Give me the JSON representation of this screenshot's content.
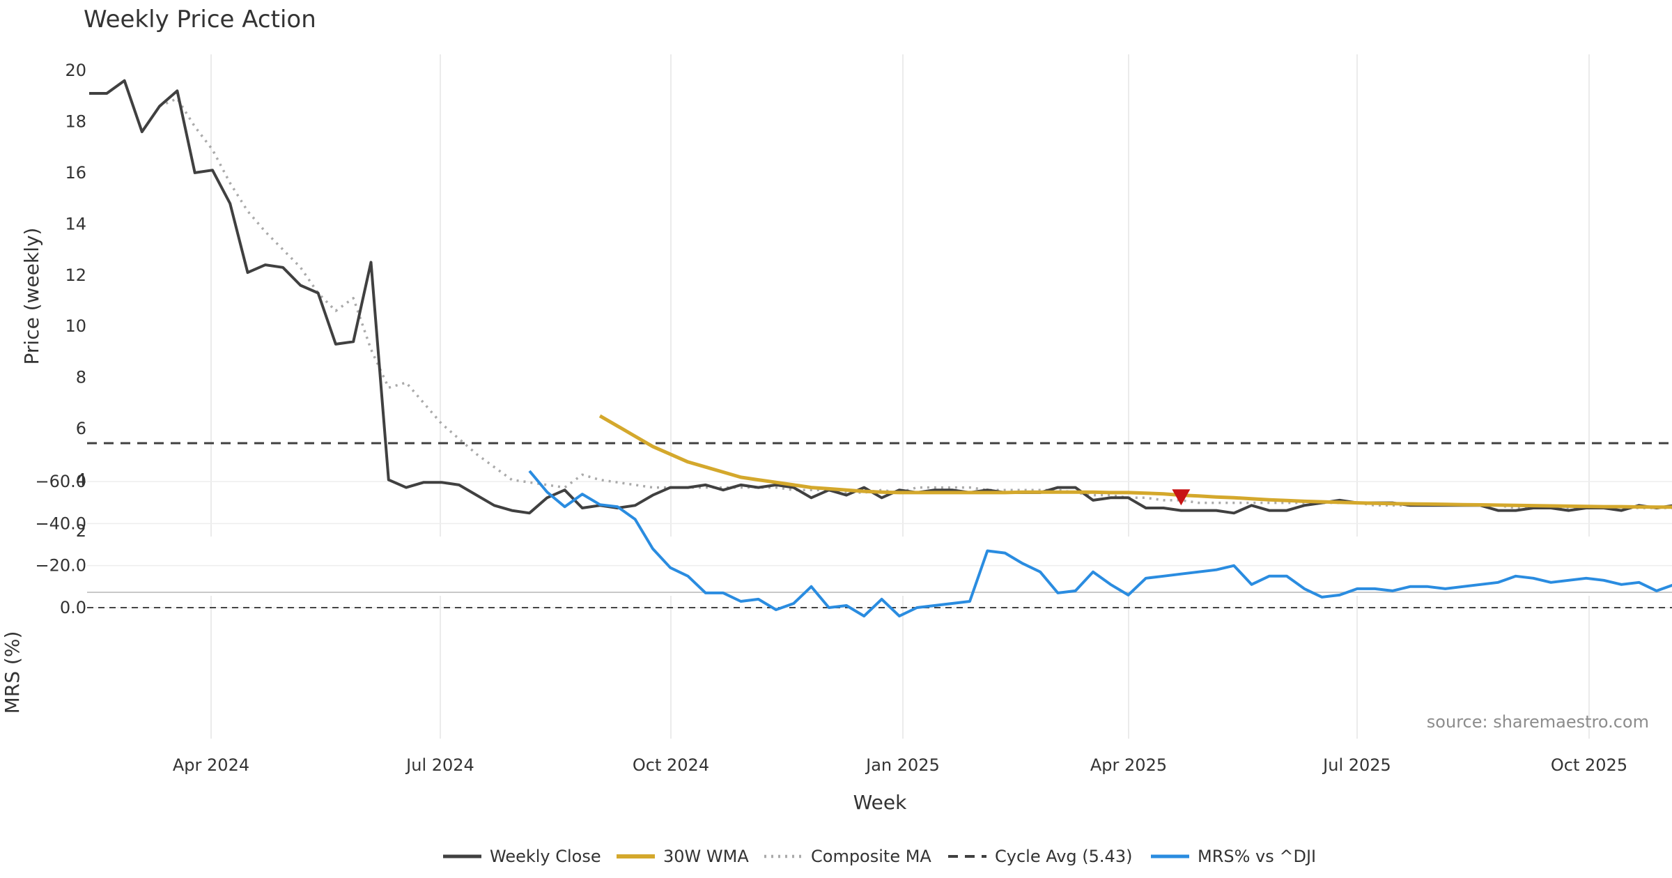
{
  "chart_data": {
    "type": "line",
    "title": "Weekly Price Action",
    "xlabel": "Week",
    "x_tick_labels": [
      "Apr 2024",
      "Jul 2024",
      "Oct 2024",
      "Jan 2025",
      "Apr 2025",
      "Jul 2025",
      "Oct 2025"
    ],
    "source_note": "source: sharemaestro.com",
    "price_panel": {
      "ylabel": "Price (weekly)",
      "ylim": [
        2,
        20
      ],
      "y_ticks": [
        "2",
        "4",
        "6",
        "8",
        "10",
        "12",
        "14",
        "16",
        "18",
        "20"
      ],
      "cycle_avg": 5.43,
      "sell_signal": {
        "week_index": 62,
        "price": 3.3
      },
      "series": [
        {
          "name": "Weekly Close",
          "color": "#404040",
          "start_index": 0,
          "values": [
            19.1,
            19.1,
            19.6,
            17.6,
            18.6,
            19.2,
            16.0,
            16.1,
            14.8,
            12.1,
            12.4,
            12.3,
            11.6,
            11.3,
            9.3,
            9.4,
            12.5,
            4.0,
            3.7,
            3.9,
            3.9,
            3.8,
            3.4,
            3.0,
            2.8,
            2.7,
            3.3,
            3.6,
            2.9,
            3.0,
            2.9,
            3.0,
            3.4,
            3.7,
            3.7,
            3.8,
            3.6,
            3.8,
            3.7,
            3.8,
            3.7,
            3.3,
            3.6,
            3.4,
            3.7,
            3.3,
            3.6,
            3.5,
            3.6,
            3.6,
            3.5,
            3.6,
            3.5,
            3.5,
            3.5,
            3.7,
            3.7,
            3.2,
            3.3,
            3.3,
            2.9,
            2.9,
            2.8,
            2.8,
            2.8,
            2.7,
            3.0,
            2.8,
            2.8,
            3.0,
            3.1,
            3.2,
            3.1,
            3.1,
            3.1,
            3.0,
            3.0,
            3.0,
            3.0,
            3.0,
            2.8,
            2.8,
            2.9,
            2.9,
            2.8,
            2.9,
            2.9,
            2.8,
            3.0,
            2.9,
            3.0
          ]
        },
        {
          "name": "30W WMA",
          "color": "#d4a82c",
          "start_index": 29,
          "values": [
            6.5,
            6.1,
            5.7,
            5.3,
            5.0,
            4.7,
            4.5,
            4.3,
            4.1,
            4.0,
            3.9,
            3.8,
            3.7,
            3.65,
            3.6,
            3.55,
            3.52,
            3.5,
            3.5,
            3.5,
            3.5,
            3.5,
            3.5,
            3.5,
            3.52,
            3.52,
            3.52,
            3.52,
            3.52,
            3.5,
            3.5,
            3.48,
            3.45,
            3.4,
            3.37,
            3.33,
            3.3,
            3.26,
            3.22,
            3.19,
            3.16,
            3.14,
            3.12,
            3.1,
            3.08,
            3.07,
            3.06,
            3.05,
            3.04,
            3.03,
            3.02,
            3.01,
            3.0,
            2.99,
            2.98,
            2.97,
            2.96,
            2.95,
            2.95,
            2.94,
            2.93,
            2.93
          ]
        },
        {
          "name": "Composite MA",
          "color": "#aaaaaa",
          "start_index": 4,
          "values": [
            18.6,
            18.9,
            17.8,
            16.9,
            15.6,
            14.5,
            13.7,
            13.0,
            12.3,
            11.3,
            10.6,
            11.1,
            9.1,
            7.6,
            7.8,
            7.0,
            6.2,
            5.6,
            5.0,
            4.5,
            4.0,
            3.9,
            3.8,
            3.7,
            4.2,
            4.0,
            3.9,
            3.8,
            3.7,
            3.7,
            3.7,
            3.7,
            3.7,
            3.7,
            3.7,
            3.7,
            3.6,
            3.6,
            3.6,
            3.5,
            3.5,
            3.6,
            3.5,
            3.7,
            3.7,
            3.7,
            3.7,
            3.6,
            3.6,
            3.6,
            3.6,
            3.6,
            3.5,
            3.4,
            3.4,
            3.3,
            3.3,
            3.2,
            3.2,
            3.1,
            3.1,
            3.1,
            3.1,
            3.1,
            3.1,
            3.1,
            3.1,
            3.1,
            3.1,
            3.0,
            3.0,
            3.0,
            3.0,
            3.0,
            3.0,
            3.0,
            3.0,
            2.9,
            2.9,
            2.9,
            2.9,
            2.9,
            2.9,
            2.9,
            2.9,
            2.9,
            2.9
          ]
        },
        {
          "name": "Cycle Avg (5.43)",
          "color": "#404040",
          "constant": 5.43
        }
      ]
    },
    "mrs_panel": {
      "ylabel": "MRS (%)",
      "ylim": [
        -70,
        5
      ],
      "y_ticks": [
        "0.0",
        "−20.0",
        "−40.0",
        "−60.0"
      ],
      "series": [
        {
          "name": "MRS% vs ^DJI",
          "color": "#2a8ce0",
          "start_index": 25,
          "values": [
            -65,
            -55,
            -48,
            -54,
            -49,
            -48,
            -42,
            -28,
            -19,
            -15,
            -7,
            -7,
            -3,
            -4,
            1,
            -2,
            -10,
            0,
            -1,
            4,
            -4,
            4,
            0,
            -1,
            -2,
            -3,
            -27,
            -26,
            -21,
            -17,
            -7,
            -8,
            -17,
            -11,
            -6,
            -14,
            -15,
            -16,
            -17,
            -18,
            -20,
            -11,
            -15,
            -15,
            -9,
            -5,
            -6,
            -9,
            -9,
            -8,
            -10,
            -10,
            -9,
            -10,
            -11,
            -12,
            -15,
            -14,
            -12,
            -13,
            -14,
            -13,
            -11,
            -12,
            -8,
            -11,
            -7
          ]
        }
      ]
    },
    "legend": [
      "Weekly Close",
      "30W WMA",
      "Composite MA",
      "Cycle Avg (5.43)",
      "MRS% vs ^DJI"
    ],
    "legend_position": "bottom-center"
  }
}
